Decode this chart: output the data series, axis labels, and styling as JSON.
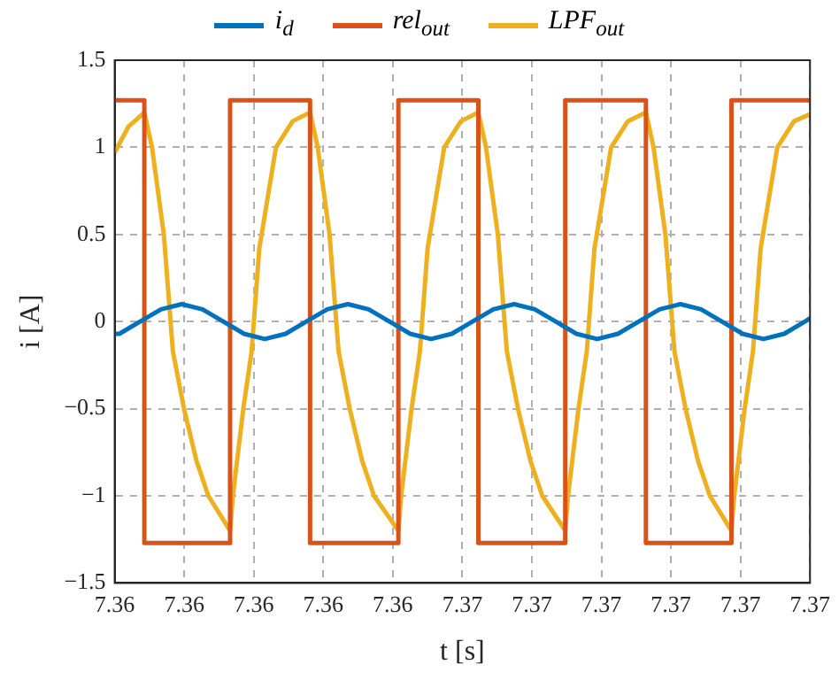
{
  "chart_data": {
    "type": "line",
    "xlabel": "t [s]",
    "ylabel": "i [A]",
    "xlim": [
      7.3605,
      7.3705
    ],
    "xticks": [
      {
        "value": 7.3605,
        "label": "7.36"
      },
      {
        "value": 7.3615,
        "label": "7.36"
      },
      {
        "value": 7.3625,
        "label": "7.36"
      },
      {
        "value": 7.3635,
        "label": "7.36"
      },
      {
        "value": 7.3645,
        "label": "7.36"
      },
      {
        "value": 7.3655,
        "label": "7.37"
      },
      {
        "value": 7.3665,
        "label": "7.37"
      },
      {
        "value": 7.3675,
        "label": "7.37"
      },
      {
        "value": 7.3685,
        "label": "7.37"
      },
      {
        "value": 7.3695,
        "label": "7.37"
      },
      {
        "value": 7.3705,
        "label": "7.37"
      }
    ],
    "ylim": [
      -1.5,
      1.5
    ],
    "yticks": [
      {
        "value": -1.5,
        "label": "−1.5"
      },
      {
        "value": -1,
        "label": "−1"
      },
      {
        "value": -0.5,
        "label": "−0.5"
      },
      0,
      0.5,
      1,
      1.5
    ],
    "grid": true,
    "legend": "top",
    "line_style": "solid",
    "marker": "none",
    "series": [
      {
        "name": "i$_{d}$",
        "type": "line",
        "color": "#0072bd",
        "x": [
          7.3605,
          7.360568,
          7.360867,
          7.361166,
          7.361464,
          7.361763,
          7.362062,
          7.362361,
          7.362659,
          7.362958,
          7.363257,
          7.363556,
          7.363854,
          7.364153,
          7.364452,
          7.364751,
          7.36505,
          7.365348,
          7.365647,
          7.365946,
          7.366245,
          7.366543,
          7.366842,
          7.367141,
          7.36744,
          7.367738,
          7.368037,
          7.368336,
          7.368635,
          7.368934,
          7.369232,
          7.369531,
          7.36983,
          7.370129,
          7.370427,
          7.3705
        ],
        "values": [
          -0.07,
          -0.07,
          0,
          0.07,
          0.1,
          0.07,
          0,
          -0.07,
          -0.1,
          -0.07,
          0,
          0.07,
          0.1,
          0.07,
          0,
          -0.07,
          -0.1,
          -0.07,
          0,
          0.07,
          0.1,
          0.07,
          0,
          -0.07,
          -0.1,
          -0.07,
          0,
          0.07,
          0.1,
          0.07,
          0,
          -0.07,
          -0.1,
          -0.07,
          0,
          0.02
        ]
      },
      {
        "name": "rel$_{out}$",
        "type": "step",
        "color": "#d95319",
        "x": [
          7.3605,
          7.360927,
          7.36216,
          7.36331,
          7.36458,
          7.36573,
          7.36698,
          7.36814,
          7.36937,
          7.3705
        ],
        "values": [
          1.27,
          -1.27,
          1.27,
          -1.27,
          1.27,
          -1.27,
          1.27,
          -1.27,
          1.27,
          1.27
        ]
      },
      {
        "name": "LPF$_{out}$",
        "type": "line",
        "color": "#edb120",
        "x": [
          7.3605,
          7.3607,
          7.360927,
          7.361037,
          7.361207,
          7.361337,
          7.361497,
          7.361677,
          7.361847,
          7.36216,
          7.3622,
          7.36235,
          7.36247,
          7.36258,
          7.36282,
          7.36306,
          7.36331,
          7.36342,
          7.36359,
          7.36372,
          7.36388,
          7.36406,
          7.36423,
          7.36458,
          7.36462,
          7.36477,
          7.36489,
          7.365,
          7.36524,
          7.36548,
          7.36573,
          7.36584,
          7.36601,
          7.36614,
          7.3663,
          7.36648,
          7.36665,
          7.36698,
          7.36702,
          7.36717,
          7.36729,
          7.3674,
          7.36764,
          7.36788,
          7.36814,
          7.36825,
          7.36842,
          7.36855,
          7.36871,
          7.36889,
          7.36906,
          7.36937,
          7.36941,
          7.36956,
          7.36968,
          7.36979,
          7.37003,
          7.37027,
          7.3705
        ],
        "values": [
          0.97,
          1.12,
          1.2,
          1.0,
          0.5,
          -0.17,
          -0.5,
          -0.8,
          -1.0,
          -1.2,
          -1.0,
          -0.5,
          -0.17,
          0.42,
          1.0,
          1.15,
          1.2,
          1.0,
          0.5,
          -0.17,
          -0.5,
          -0.8,
          -1.0,
          -1.2,
          -1.0,
          -0.5,
          -0.17,
          0.42,
          1.0,
          1.15,
          1.2,
          1.0,
          0.5,
          -0.17,
          -0.5,
          -0.8,
          -1.0,
          -1.2,
          -1.0,
          -0.5,
          -0.17,
          0.42,
          1.0,
          1.15,
          1.2,
          1.0,
          0.5,
          -0.17,
          -0.5,
          -0.8,
          -1.0,
          -1.2,
          -1.0,
          -0.5,
          -0.17,
          0.42,
          1.0,
          1.15,
          1.19
        ]
      }
    ]
  }
}
